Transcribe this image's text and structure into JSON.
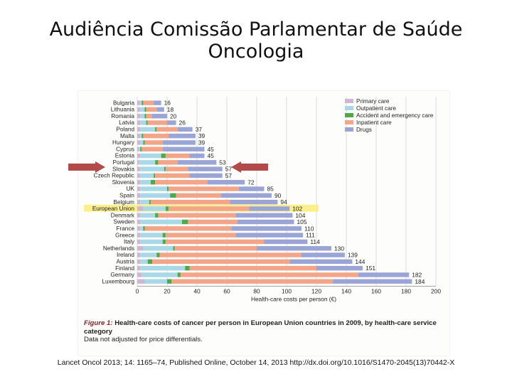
{
  "slide": {
    "title_line1": "Audiência Comissão Parlamentar de Saúde",
    "title_line2": "Oncologia",
    "citation": "Lancet Oncol 2013; 14: 1165–74, Published Online, October 14, 2013 http://dx.doi.org/10.1016/S1470-2045(13)70442-X"
  },
  "caption": {
    "fig_label": "Figure 1:",
    "fig_text": "Health-care costs of cancer per person in European Union countries in 2009, by health-care service category",
    "note": "Data not adjusted for price differentials."
  },
  "colors": {
    "Primary care": "#cdb6d6",
    "Outpatient care": "#a9d8e6",
    "Accident and emergency care": "#4fa84a",
    "Inpatient care": "#f3a58a",
    "Drugs": "#9aa5d6",
    "highlight": "#fbef8c",
    "arrow": "#b24a4a"
  },
  "chart_data": {
    "type": "bar",
    "orientation": "horizontal",
    "stacked": true,
    "xlabel": "Health-care costs per person (€)",
    "xlim": [
      0,
      200
    ],
    "xticks": [
      "0",
      "20",
      "40",
      "60",
      "80",
      "100",
      "120",
      "140",
      "160",
      "180",
      "200"
    ],
    "legend_position": "top-right",
    "highlighted_category": "European Union",
    "arrow_markers": [
      "Portugal"
    ],
    "categories": [
      "Bulgaria",
      "Lithuania",
      "Romania",
      "Latvia",
      "Poland",
      "Malta",
      "Hungary",
      "Cyprus",
      "Estonia",
      "Portugal",
      "Slovakia",
      "Czech Republic",
      "Slovenia",
      "UK",
      "Spain",
      "Belgium",
      "European Union",
      "Denmark",
      "Sweden",
      "France",
      "Greece",
      "Italy",
      "Netherlands",
      "Ireland",
      "Austria",
      "Finland",
      "Germany",
      "Luxembourg"
    ],
    "totals": [
      "16",
      "18",
      "20",
      "26",
      "37",
      "39",
      "39",
      "45",
      "45",
      "53",
      "57",
      "57",
      "72",
      "85",
      "90",
      "94",
      "102",
      "104",
      "105",
      "110",
      "111",
      "114",
      "130",
      "139",
      "144",
      "151",
      "182",
      "184"
    ],
    "series": [
      {
        "name": "Primary care",
        "values": [
          2,
          2,
          2,
          2,
          2,
          2,
          2,
          1,
          2,
          1,
          2,
          2,
          2,
          2,
          2,
          2,
          4,
          2,
          2,
          2,
          2,
          2,
          4,
          2,
          2,
          2,
          3,
          5
        ]
      },
      {
        "name": "Outpatient care",
        "values": [
          1,
          3,
          3,
          4,
          10,
          1,
          2,
          1,
          14,
          11,
          16,
          9,
          7,
          18,
          20,
          6,
          15,
          10,
          28,
          2,
          15,
          15,
          20,
          11,
          5,
          30,
          24,
          15
        ]
      },
      {
        "name": "Accident and emergency care",
        "values": [
          1,
          1,
          1,
          1,
          1,
          1,
          1,
          1,
          3,
          2,
          1,
          1,
          3,
          1,
          4,
          1,
          2,
          2,
          4,
          1,
          2,
          2,
          1,
          2,
          3,
          3,
          2,
          3
        ]
      },
      {
        "name": "Inpatient care",
        "values": [
          7,
          7,
          4,
          13,
          14,
          17,
          12,
          14,
          16,
          13,
          15,
          23,
          35,
          47,
          30,
          53,
          54,
          52,
          33,
          58,
          47,
          66,
          55,
          95,
          92,
          85,
          119,
          108
        ]
      },
      {
        "name": "Drugs",
        "values": [
          5,
          5,
          10,
          6,
          10,
          18,
          22,
          28,
          10,
          26,
          23,
          22,
          25,
          17,
          34,
          32,
          27,
          38,
          38,
          47,
          45,
          29,
          50,
          29,
          42,
          31,
          34,
          53
        ]
      }
    ]
  }
}
